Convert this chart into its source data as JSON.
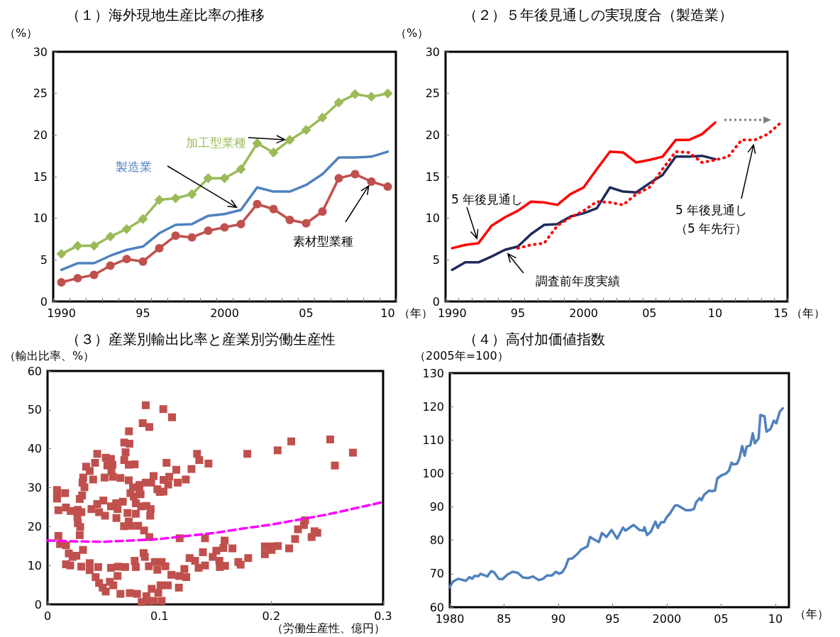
{
  "chart_data": [
    {
      "type": "line",
      "title": "（１）海外現地生産比率の推移",
      "ylabel": "（%）",
      "xlabel": "（年）",
      "categories": [
        "1990",
        null,
        null,
        null,
        null,
        "95",
        null,
        null,
        null,
        null,
        "2000",
        null,
        null,
        null,
        null,
        "05",
        null,
        null,
        null,
        null,
        "10"
      ],
      "ylim": [
        0,
        30
      ],
      "yticks": [
        0,
        5,
        10,
        15,
        20,
        25,
        30
      ],
      "grid": false,
      "legend": false,
      "series": [
        {
          "name": "加工型業種",
          "color": "#9bbb59",
          "marker": "diamond",
          "values": [
            5.7,
            6.7,
            6.7,
            7.8,
            8.7,
            9.9,
            12.2,
            12.4,
            12.9,
            14.8,
            14.8,
            15.9,
            19.0,
            17.9,
            19.4,
            20.6,
            22.1,
            23.9,
            24.9,
            24.6,
            25.0
          ]
        },
        {
          "name": "製造業",
          "color": "#4f81bd",
          "marker": "none",
          "values": [
            3.8,
            4.6,
            4.6,
            5.5,
            6.2,
            6.6,
            8.2,
            9.2,
            9.3,
            10.3,
            10.5,
            11.0,
            13.7,
            13.2,
            13.2,
            14.0,
            15.3,
            17.3,
            17.3,
            17.4,
            18.0
          ]
        },
        {
          "name": "素材型業種",
          "color": "#c0504d",
          "marker": "circle",
          "values": [
            2.3,
            2.8,
            3.2,
            4.3,
            5.1,
            4.8,
            6.4,
            7.9,
            7.7,
            8.5,
            8.9,
            9.3,
            11.7,
            11.1,
            9.8,
            9.4,
            10.8,
            14.8,
            15.3,
            14.4,
            13.8
          ]
        }
      ]
    },
    {
      "type": "line",
      "title": "（２）５年後見通しの実現度合（製造業）",
      "ylabel": "（%）",
      "xlabel": "（年）",
      "categories": [
        "1990",
        null,
        null,
        null,
        null,
        "95",
        null,
        null,
        null,
        null,
        "2000",
        null,
        null,
        null,
        null,
        "05",
        null,
        null,
        null,
        null,
        "10",
        null,
        null,
        null,
        null,
        "15"
      ],
      "ylim": [
        0,
        30
      ],
      "yticks": [
        0,
        5,
        10,
        15,
        20,
        25,
        30
      ],
      "grid": false,
      "legend": false,
      "marker": "none",
      "series": [
        {
          "name": "5 年後見通し",
          "color": "#ff0000",
          "line_style": "solid",
          "values": [
            6.4,
            6.8,
            7.0,
            9.1,
            10.1,
            10.9,
            12.0,
            11.9,
            11.6,
            12.9,
            13.7,
            15.9,
            18.0,
            17.9,
            16.7,
            17.0,
            17.4,
            19.4,
            19.4,
            20.1,
            21.5,
            null,
            null,
            null,
            null,
            null
          ]
        },
        {
          "name": "調査前年度実績",
          "color": "#1f2a5c",
          "line_style": "solid",
          "values": [
            3.8,
            4.7,
            4.7,
            5.4,
            6.2,
            6.6,
            8.1,
            9.2,
            9.3,
            10.2,
            10.6,
            11.2,
            13.7,
            13.2,
            13.1,
            14.2,
            15.2,
            17.4,
            17.4,
            17.5,
            17.1,
            null,
            null,
            null,
            null,
            null
          ]
        },
        {
          "name": "5 年後見通し（5 年先行）",
          "color": "#ff0000",
          "line_style": "dotted",
          "values": [
            null,
            null,
            null,
            null,
            null,
            6.4,
            6.8,
            7.0,
            9.1,
            10.1,
            10.9,
            12.0,
            11.9,
            11.6,
            12.9,
            13.7,
            15.9,
            18.0,
            17.9,
            16.7,
            17.0,
            17.4,
            19.4,
            19.4,
            20.1,
            21.5
          ]
        }
      ]
    },
    {
      "type": "scatter",
      "title": "（３）産業別輸出比率と産業別労働生産性",
      "ylabel": "（輸出比率、%）",
      "xlabel": "（労働生産性、億円）",
      "xlim": [
        0,
        0.3
      ],
      "xticks": [
        0,
        0.1,
        0.2,
        0.3
      ],
      "ylim": [
        0,
        60
      ],
      "yticks": [
        0,
        10,
        20,
        30,
        40,
        50,
        60
      ],
      "grid": false,
      "legend": false,
      "series": [
        {
          "color": "#c0504d",
          "marker": "square",
          "x": [
            0.0878,
            0.1035,
            0.1113,
            0.0851,
            0.091,
            0.0728,
            0.0686,
            0.0732,
            0.0698,
            0.0444,
            0.1337,
            0.1786,
            0.2057,
            0.2179,
            0.2527,
            0.273,
            0.2569,
            0.1356,
            0.1439,
            0.1064,
            0.0686,
            0.0521,
            0.0779,
            0.0726,
            0.0567,
            0.0425,
            0.0345,
            0.058,
            0.0535,
            0.0377,
            0.1287,
            0.1151,
            0.0571,
            0.0319,
            0.0408,
            0.051,
            0.0584,
            0.0652,
            0.0726,
            0.0948,
            0.1037,
            0.1088,
            0.1236,
            0.1164,
            0.1079,
            0.0878,
            0.0927,
            0.0313,
            0.033,
            0.0764,
            0.0821,
            0.0085,
            0.0157,
            0.0085,
            0.0085,
            0.0309,
            0.0288,
            0.0741,
            0.0832,
            0.0982,
            0.1003,
            0.1037,
            0.0821,
            0.0771,
            0.0097,
            0.0165,
            0.0207,
            0.0271,
            0.0302,
            0.0267,
            0.0271,
            0.0292,
            0.0288,
            0.0393,
            0.0444,
            0.0499,
            0.0461,
            0.0514,
            0.0567,
            0.0614,
            0.0673,
            0.0626,
            0.0616,
            0.0715,
            0.0789,
            0.0726,
            0.0684,
            0.0741,
            0.081,
            0.0863,
            0.091,
            0.0789,
            0.0837,
            0.0884,
            0.0922,
            0.0918,
            0.0097,
            0.0112,
            0.0165,
            0.019,
            0.0224,
            0.0258,
            0.0317,
            0.0165,
            0.0203,
            0.0302,
            0.0377,
            0.0377,
            0.0453,
            0.043,
            0.0461,
            0.0493,
            0.052,
            0.0557,
            0.0567,
            0.063,
            0.0694,
            0.0626,
            0.0588,
            0.0652,
            0.0736,
            0.08,
            0.0884,
            0.0842,
            0.0906,
            0.0948,
            0.102,
            0.0931,
            0.1011,
            0.1075,
            0.099,
            0.0779,
            0.0789,
            0.0859,
            0.087,
            0.0906,
            0.0959,
            0.0982,
            0.102,
            0.1054,
            0.1107,
            0.1177,
            0.124,
            0.1223,
            0.127,
            0.1319,
            0.1351,
            0.1408,
            0.1389,
            0.1174,
            0.1181,
            0.1408,
            0.1477,
            0.1509,
            0.1572,
            0.1583,
            0.1653,
            0.1536,
            0.154,
            0.1587,
            0.1705,
            0.1726,
            0.1794,
            0.1943,
            0.2006,
            0.2059,
            0.1943,
            0.2002,
            0.216,
            0.2213,
            0.2239,
            0.2292,
            0.2302,
            0.2361,
            0.2387,
            0.2412
          ],
          "values": [
            51.2,
            50.2,
            48.1,
            46.6,
            45.6,
            44.5,
            41.6,
            41.3,
            39.1,
            38.7,
            38.7,
            38.7,
            39.6,
            41.9,
            42.4,
            39.0,
            35.7,
            37.1,
            36.2,
            36.4,
            37.1,
            37.7,
            36.0,
            35.9,
            37.4,
            36.4,
            35.4,
            35.9,
            35.7,
            34.3,
            34.8,
            34.6,
            34.3,
            32.6,
            32.1,
            32.6,
            32.8,
            32.5,
            31.9,
            33.0,
            32.0,
            32.8,
            32.1,
            31.3,
            30.8,
            31.3,
            31.3,
            31.3,
            30.1,
            30.1,
            30.7,
            29.4,
            28.6,
            28.3,
            27.2,
            28.0,
            27.1,
            28.6,
            28.3,
            29.6,
            28.9,
            29.0,
            29.5,
            27.7,
            24.2,
            24.9,
            24.0,
            24.3,
            23.7,
            22.5,
            20.9,
            19.9,
            17.8,
            24.5,
            25.8,
            26.7,
            23.7,
            22.8,
            25.2,
            26.0,
            26.4,
            24.5,
            22.2,
            23.5,
            23.3,
            21.3,
            20.1,
            20.2,
            20.2,
            19.0,
            17.3,
            26.0,
            25.2,
            25.3,
            24.5,
            22.8,
            17.6,
            15.5,
            15.2,
            13.1,
            12.2,
            12.5,
            14.0,
            10.3,
            10.0,
            9.7,
            10.6,
            8.8,
            9.6,
            7.0,
            5.5,
            4.3,
            3.3,
            5.8,
            9.4,
            9.7,
            9.6,
            7.3,
            4.9,
            2.7,
            2.9,
            2.7,
            2.1,
            0.6,
            0.9,
            0.9,
            0.9,
            4.0,
            4.9,
            4.9,
            3.0,
            11.2,
            9.6,
            13.2,
            12.2,
            9.8,
            10.9,
            8.9,
            10.9,
            9.8,
            7.6,
            7.3,
            7.0,
            9.1,
            11.9,
            11.2,
            9.4,
            10.0,
            13.4,
            4.3,
            17.0,
            17.0,
            12.2,
            13.8,
            14.5,
            16.4,
            14.4,
            11.2,
            9.6,
            9.9,
            10.9,
            10.2,
            11.9,
            14.9,
            14.9,
            15.0,
            12.9,
            14.0,
            14.4,
            16.8,
            19.3,
            20.4,
            21.6,
            17.3,
            18.8,
            18.4
          ]
        },
        {
          "type": "line",
          "color": "#ff00ff",
          "marker": "none",
          "line_style": "dashed",
          "x": [
            0,
            0.025,
            0.05,
            0.075,
            0.1,
            0.125,
            0.15,
            0.175,
            0.2,
            0.225,
            0.25,
            0.275,
            0.3
          ],
          "values": [
            16.4,
            16.2,
            16.1,
            16.4,
            16.8,
            17.6,
            18.4,
            19.5,
            20.5,
            21.8,
            23.1,
            24.7,
            26.3
          ]
        }
      ]
    },
    {
      "type": "line",
      "title": "（４）高付加価値指数",
      "ylabel": "（2005年=100）",
      "xlabel": "（年）",
      "xlim": [
        1980,
        2011.25
      ],
      "xticks": [
        1980,
        {
          "value": 1985,
          "label": "85"
        },
        {
          "value": 1990,
          "label": "90"
        },
        {
          "value": 1995,
          "label": "95"
        },
        2000,
        {
          "value": 2005,
          "label": "05"
        },
        {
          "value": 2010,
          "label": "10"
        }
      ],
      "ylim": [
        60,
        130
      ],
      "yticks": [
        60,
        70,
        80,
        90,
        100,
        110,
        120,
        130
      ],
      "grid": false,
      "legend": false,
      "marker": "none",
      "series": [
        {
          "color": "#4f81bd",
          "x": [
            1980.0,
            1980.3,
            1980.77,
            1981.47,
            1981.82,
            1982.06,
            1982.29,
            1982.64,
            1982.83,
            1983.46,
            1983.81,
            1984.09,
            1984.51,
            1984.86,
            1985.33,
            1985.79,
            1986.26,
            1986.73,
            1987.2,
            1987.66,
            1988.2,
            1988.6,
            1988.95,
            1989.42,
            1989.77,
            1990.07,
            1990.35,
            1990.65,
            1990.93,
            1991.29,
            1991.75,
            1992.1,
            1992.69,
            1992.92,
            1993.5,
            1993.74,
            1994.02,
            1994.44,
            1994.91,
            1995.42,
            1995.96,
            1996.19,
            1996.54,
            1996.94,
            1997.48,
            1997.83,
            1997.94,
            1998.18,
            1998.53,
            1998.95,
            1999.18,
            1999.46,
            1999.74,
            1999.98,
            2000.28,
            2000.75,
            2000.98,
            2001.75,
            2002.15,
            2002.5,
            2002.69,
            2003.01,
            2003.2,
            2003.43,
            2003.9,
            2004.13,
            2004.44,
            2004.65,
            2005.02,
            2005.42,
            2005.72,
            2005.96,
            2006.14,
            2006.47,
            2006.7,
            2006.94,
            2007.17,
            2007.36,
            2007.69,
            2007.92,
            2008.11,
            2008.46,
            2008.62,
            2009.0,
            2009.18,
            2009.56,
            2009.86,
            2010.09,
            2010.4,
            2010.68
          ],
          "values": [
            66.0,
            67.7,
            68.5,
            67.9,
            69.0,
            68.5,
            69.4,
            69.3,
            70.0,
            69.2,
            70.8,
            70.4,
            68.5,
            68.4,
            69.8,
            70.6,
            70.3,
            68.9,
            68.7,
            69.2,
            68.1,
            68.5,
            69.5,
            69.5,
            70.6,
            70.0,
            70.4,
            71.9,
            74.4,
            74.6,
            75.9,
            77.2,
            78.2,
            81.0,
            79.9,
            79.5,
            82.2,
            81.0,
            83.1,
            80.5,
            83.8,
            82.9,
            83.7,
            84.6,
            83.1,
            82.9,
            83.9,
            81.6,
            82.6,
            85.6,
            83.7,
            85.4,
            85.4,
            86.9,
            88.0,
            90.4,
            90.5,
            89.0,
            89.0,
            89.4,
            91.3,
            92.6,
            92.0,
            93.6,
            94.9,
            94.7,
            94.9,
            98.5,
            99.4,
            99.9,
            100.8,
            103.2,
            102.7,
            102.9,
            104.6,
            108.2,
            105.3,
            108.0,
            108.4,
            112.0,
            109.0,
            110.5,
            117.5,
            117.1,
            112.5,
            113.3,
            115.8,
            115.0,
            118.4,
            119.5
          ]
        }
      ]
    }
  ]
}
